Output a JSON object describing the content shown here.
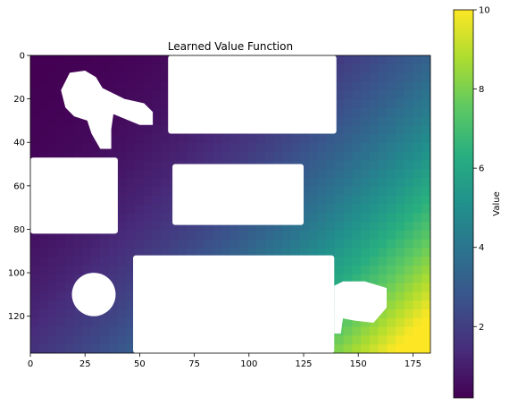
{
  "chart_data": {
    "type": "heatmap",
    "title": "Learned Value Function",
    "x_range": [
      0,
      183
    ],
    "y_range": [
      0,
      137
    ],
    "y_inverted": true,
    "x_ticks": [
      0,
      25,
      50,
      75,
      100,
      125,
      150,
      175
    ],
    "y_ticks": [
      0,
      20,
      40,
      60,
      80,
      100,
      120
    ],
    "colormap": "viridis",
    "colorbar": {
      "label": "Value",
      "range": [
        0.2,
        10
      ],
      "ticks": [
        2,
        4,
        6,
        8,
        10
      ]
    },
    "value_trend": "increases toward the bottom-right corner, lowest at the top-left",
    "obstacle_color": "#ffffff",
    "obstacles": [
      {
        "shape": "rect",
        "x0": 63,
        "x1": 140,
        "y0": 0,
        "y1": 36
      },
      {
        "shape": "rect",
        "x0": 65,
        "x1": 125,
        "y0": 50,
        "y1": 78
      },
      {
        "shape": "rect",
        "x0": 0,
        "x1": 40,
        "y0": 47,
        "y1": 82
      },
      {
        "shape": "rect",
        "x0": 47,
        "x1": 139,
        "y0": 92,
        "y1": 137
      },
      {
        "shape": "ellipse",
        "cx": 29,
        "cy": 110,
        "rx": 10,
        "ry": 10
      },
      {
        "shape": "blob",
        "points": [
          [
            14,
            16
          ],
          [
            18,
            8
          ],
          [
            25,
            7
          ],
          [
            30,
            10
          ],
          [
            33,
            15
          ],
          [
            43,
            20
          ],
          [
            52,
            22
          ],
          [
            56,
            26
          ],
          [
            56,
            32
          ],
          [
            50,
            32
          ],
          [
            38,
            27
          ],
          [
            37,
            34
          ],
          [
            37,
            43
          ],
          [
            32,
            43
          ],
          [
            28,
            36
          ],
          [
            26,
            30
          ],
          [
            20,
            28
          ],
          [
            16,
            24
          ]
        ]
      },
      {
        "shape": "blob",
        "points": [
          [
            139,
            106
          ],
          [
            143,
            104
          ],
          [
            153,
            104
          ],
          [
            163,
            107
          ],
          [
            163,
            116
          ],
          [
            157,
            123
          ],
          [
            148,
            122
          ],
          [
            143,
            121
          ],
          [
            142,
            128
          ],
          [
            139,
            128
          ]
        ]
      }
    ]
  }
}
